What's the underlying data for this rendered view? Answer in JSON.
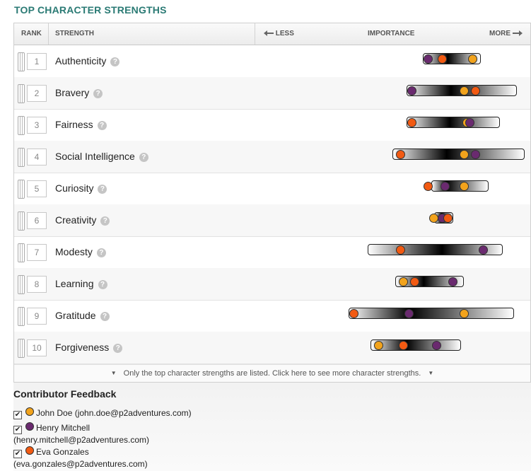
{
  "page_title": "TOP CHARACTER STRENGTHS",
  "headers": {
    "rank": "RANK",
    "strength": "STRENGTH",
    "less": "LESS",
    "importance": "IMPORTANCE",
    "more": "MORE"
  },
  "help_glyph": "?",
  "colors": {
    "john": "#f2a31c",
    "henry": "#6a2a6f",
    "eva": "#f25a12"
  },
  "strengths": [
    {
      "rank": "1",
      "name": "Authenticity",
      "bar": [
        0.61,
        0.82
      ],
      "john": 0.79,
      "henry": 0.63,
      "eva": 0.68
    },
    {
      "rank": "2",
      "name": "Bravery",
      "bar": [
        0.55,
        0.95
      ],
      "john": 0.76,
      "henry": 0.57,
      "eva": 0.8
    },
    {
      "rank": "3",
      "name": "Fairness",
      "bar": [
        0.55,
        0.89
      ],
      "john": 0.77,
      "henry": 0.78,
      "eva": 0.57
    },
    {
      "rank": "4",
      "name": "Social Intelligence",
      "bar": [
        0.5,
        0.98
      ],
      "john": 0.76,
      "henry": 0.8,
      "eva": 0.53
    },
    {
      "rank": "5",
      "name": "Curiosity",
      "bar": [
        0.64,
        0.85
      ],
      "john": 0.76,
      "henry": 0.69,
      "eva": 0.63
    },
    {
      "rank": "6",
      "name": "Creativity",
      "bar": [
        0.65,
        0.72
      ],
      "john": 0.65,
      "henry": 0.68,
      "eva": 0.7
    },
    {
      "rank": "7",
      "name": "Modesty",
      "bar": [
        0.41,
        0.9
      ],
      "john": null,
      "henry": 0.83,
      "eva": 0.53
    },
    {
      "rank": "8",
      "name": "Learning",
      "bar": [
        0.51,
        0.76
      ],
      "john": 0.54,
      "henry": 0.72,
      "eva": 0.58
    },
    {
      "rank": "9",
      "name": "Gratitude",
      "bar": [
        0.34,
        0.94
      ],
      "john": 0.76,
      "henry": 0.56,
      "eva": 0.36
    },
    {
      "rank": "10",
      "name": "Forgiveness",
      "bar": [
        0.42,
        0.75
      ],
      "john": 0.45,
      "henry": 0.66,
      "eva": 0.54
    }
  ],
  "more_note": "Only the top character strengths are listed. Click here to see more character strengths.",
  "feedback": {
    "title": "Contributor Feedback",
    "contributors": [
      {
        "key": "john",
        "name": "John Doe",
        "email": "(john.doe@p2adventures.com)",
        "checked": true
      },
      {
        "key": "henry",
        "name": "Henry Mitchell",
        "email": "(henry.mitchell@p2adventures.com)",
        "checked": true
      },
      {
        "key": "eva",
        "name": "Eva Gonzales",
        "email": "(eva.gonzales@p2adventures.com)",
        "checked": true
      }
    ]
  }
}
